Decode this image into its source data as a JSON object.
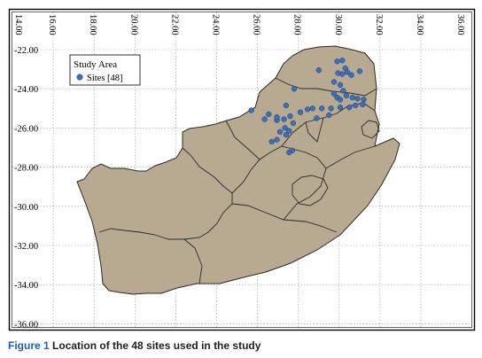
{
  "figure": {
    "caption_label": "Figure 1",
    "caption_text": "Location of the 48 sites used in the study"
  },
  "map": {
    "lon_ticks": [
      "14.00",
      "16.00",
      "18.00",
      "20.00",
      "22.00",
      "24.00",
      "26.00",
      "28.00",
      "30.00",
      "32.00",
      "34.00",
      "36.00"
    ],
    "lat_ticks": [
      "-22.00",
      "-24.00",
      "-26.00",
      "-28.00",
      "-30.00",
      "-32.00",
      "-34.00",
      "-36.00"
    ],
    "legend": {
      "title": "Study Area",
      "item_label": "Sites [48]"
    },
    "colors": {
      "land": "#b7aa91",
      "border": "#2a2a2a",
      "site": "#3f6fb8",
      "site_edge": "#1c3a6e",
      "grid": "#999999"
    },
    "sites": [
      [
        29.0,
        -23.05
      ],
      [
        29.9,
        -22.6
      ],
      [
        30.15,
        -22.55
      ],
      [
        30.3,
        -22.95
      ],
      [
        30.15,
        -23.25
      ],
      [
        29.95,
        -23.2
      ],
      [
        30.4,
        -23.15
      ],
      [
        30.6,
        -23.3
      ],
      [
        31.0,
        -23.1
      ],
      [
        29.75,
        -23.65
      ],
      [
        30.05,
        -23.8
      ],
      [
        30.2,
        -24.1
      ],
      [
        29.75,
        -24.25
      ],
      [
        29.9,
        -24.45
      ],
      [
        30.05,
        -24.55
      ],
      [
        30.35,
        -24.35
      ],
      [
        30.65,
        -24.45
      ],
      [
        30.9,
        -24.5
      ],
      [
        31.2,
        -24.55
      ],
      [
        31.15,
        -24.8
      ],
      [
        30.8,
        -24.85
      ],
      [
        30.5,
        -24.95
      ],
      [
        30.05,
        -24.95
      ],
      [
        29.6,
        -25.0
      ],
      [
        29.15,
        -25.0
      ],
      [
        28.7,
        -25.0
      ],
      [
        28.45,
        -25.05
      ],
      [
        28.1,
        -25.2
      ],
      [
        29.5,
        -25.35
      ],
      [
        28.9,
        -25.5
      ],
      [
        27.8,
        -24.0
      ],
      [
        27.4,
        -24.85
      ],
      [
        27.6,
        -25.4
      ],
      [
        27.3,
        -25.55
      ],
      [
        26.95,
        -25.6
      ],
      [
        27.75,
        -25.75
      ],
      [
        27.35,
        -26.0
      ],
      [
        27.1,
        -26.2
      ],
      [
        27.55,
        -26.15
      ],
      [
        27.4,
        -26.35
      ],
      [
        26.95,
        -25.45
      ],
      [
        26.55,
        -25.3
      ],
      [
        26.35,
        -25.55
      ],
      [
        27.7,
        -27.15
      ],
      [
        27.55,
        -27.25
      ],
      [
        26.95,
        -26.6
      ],
      [
        26.7,
        -26.7
      ],
      [
        25.7,
        -25.1
      ]
    ]
  }
}
